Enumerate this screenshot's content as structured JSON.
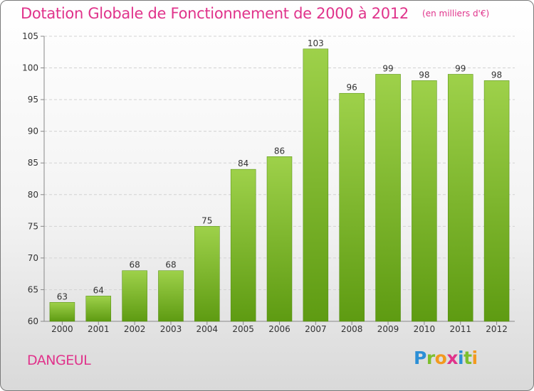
{
  "header": {
    "title": "Dotation Globale de Fonctionnement de 2000 à 2012",
    "unit": "(en milliers d'€)"
  },
  "commune": "DANGEUL",
  "logo": {
    "text": "Proxiti",
    "letters": [
      {
        "ch": "P",
        "color": "#2c8fd6"
      },
      {
        "ch": "r",
        "color": "#7cbf2e"
      },
      {
        "ch": "o",
        "color": "#f29a1e"
      },
      {
        "ch": "x",
        "color": "#e0338b"
      },
      {
        "ch": "i",
        "color": "#2c8fd6"
      },
      {
        "ch": "t",
        "color": "#7cbf2e"
      },
      {
        "ch": "i",
        "color": "#f29a1e"
      }
    ]
  },
  "chart_data": {
    "type": "bar",
    "categories": [
      "2000",
      "2001",
      "2002",
      "2003",
      "2004",
      "2005",
      "2006",
      "2007",
      "2008",
      "2009",
      "2010",
      "2011",
      "2012"
    ],
    "values": [
      63,
      64,
      68,
      68,
      75,
      84,
      86,
      103,
      96,
      99,
      98,
      99,
      98
    ],
    "ylim": [
      60,
      105
    ],
    "yticks": [
      60,
      65,
      70,
      75,
      80,
      85,
      90,
      95,
      100,
      105
    ],
    "grid": true,
    "bar_color_top": "#9ed14a",
    "bar_color_bottom": "#5e9b12",
    "title_color": "#e0338b"
  }
}
